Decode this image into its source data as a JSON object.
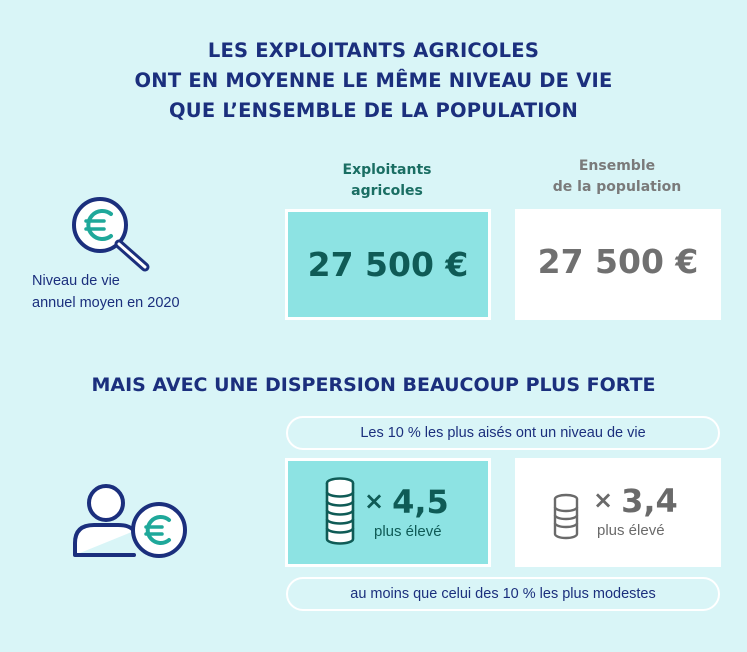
{
  "title": {
    "line1": "LES EXPLOITANTS AGRICOLES",
    "line2": "ONT EN MOYENNE LE MÊME NIVEAU DE VIE",
    "line3": "QUE L’ENSEMBLE DE LA POPULATION"
  },
  "columns": {
    "farmers": {
      "line1": "Exploitants",
      "line2": "agricoles"
    },
    "population": {
      "line1": "Ensemble",
      "line2": "de la population"
    }
  },
  "living_standard": {
    "label_line1": "Niveau de vie",
    "label_line2": "annuel moyen en 2020",
    "farmers_value": "27 500 €",
    "population_value": "27 500 €"
  },
  "dispersion": {
    "subtitle": "MAIS AVEC UNE DISPERSION BEAUCOUP PLUS FORTE",
    "top_pill": "Les 10 % les plus aisés ont un niveau de vie",
    "farmers_multiplier": "4,5",
    "population_multiplier": "3,4",
    "times_sign": "×",
    "farmers_sub": "plus élevé",
    "population_sub": "plus élevé",
    "bottom_pill": "au moins que celui des 10 % les plus modestes"
  },
  "icons": {
    "magnifier": "magnifier-euro-icon",
    "person": "person-euro-icon",
    "coins": "coin-stack-icon"
  },
  "colors": {
    "background": "#d9f5f7",
    "navy": "#1b2f7d",
    "teal_box": "#8de3e3",
    "teal_text": "#0f5b56",
    "grey_text": "#707070",
    "euro_teal": "#1fa89a"
  }
}
